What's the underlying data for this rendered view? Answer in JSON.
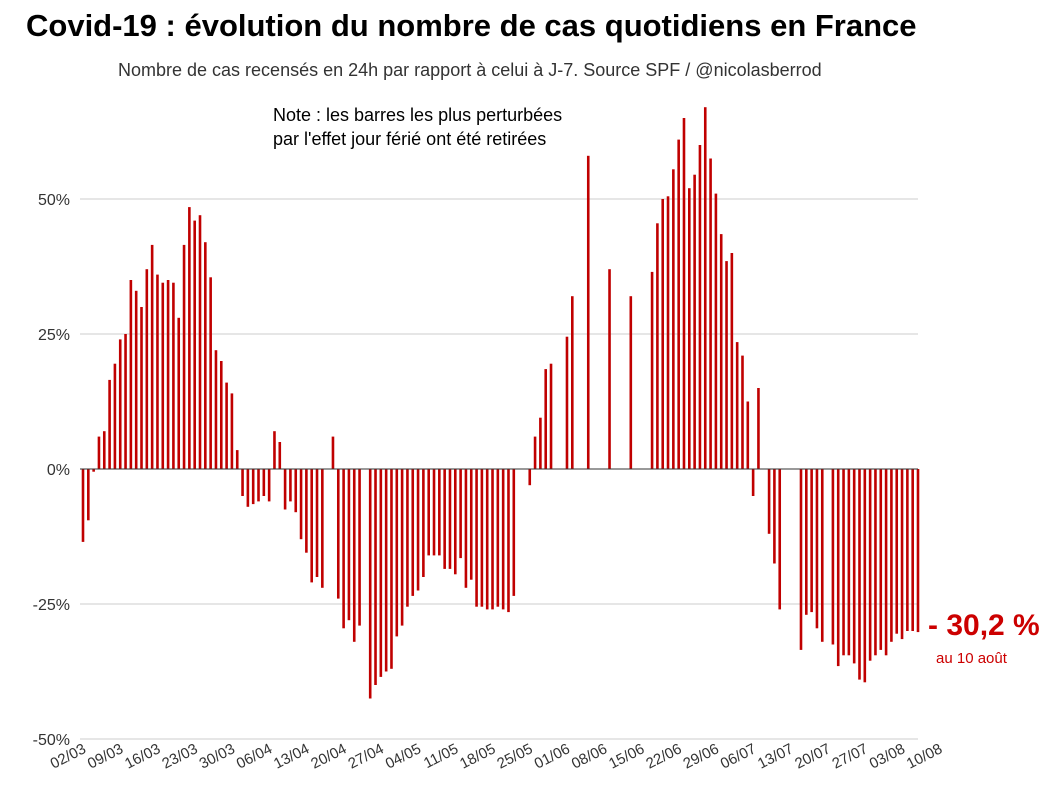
{
  "title": "Covid-19 : évolution du nombre de cas quotidiens en France",
  "subtitle": "Nombre de cas recensés en 24h par rapport à celui à J-7. Source SPF / @nicolasberrod",
  "note": {
    "line1": "Note : les barres les plus perturbées",
    "line2": "par l'effet jour férié ont été retirées"
  },
  "annotation": {
    "value": "- 30,2 %",
    "caption": "au 10 août",
    "color": "#cc0000"
  },
  "chart_data": {
    "type": "bar",
    "bar_color": "#c00000",
    "ylim": [
      -50,
      60
    ],
    "yticks": [
      50,
      25,
      0,
      -25,
      -50
    ],
    "ytick_labels": [
      "50%",
      "25%",
      "0%",
      "-25%",
      "-50%"
    ],
    "grid": true,
    "x_start": "02/03",
    "x_end": "10/08",
    "xtick_labels": [
      "02/03",
      "09/03",
      "16/03",
      "23/03",
      "30/03",
      "06/04",
      "13/04",
      "20/04",
      "27/04",
      "04/05",
      "11/05",
      "18/05",
      "25/05",
      "01/06",
      "08/06",
      "15/06",
      "22/06",
      "29/06",
      "06/07",
      "13/07",
      "20/07",
      "27/07",
      "03/08",
      "10/08"
    ],
    "values": [
      -13.5,
      -9.5,
      -0.5,
      6,
      7,
      16.5,
      19.5,
      24,
      25,
      35,
      33,
      30,
      37,
      41.5,
      36,
      34.5,
      35,
      34.5,
      28,
      41.5,
      48.5,
      46,
      47,
      42,
      35.5,
      22,
      20,
      16,
      14,
      3.5,
      -5,
      -7,
      -6.5,
      -6,
      -5,
      -6,
      7,
      5,
      -7.5,
      -6,
      -8,
      -13,
      -15.5,
      -21,
      -20,
      -22,
      null,
      6,
      -24,
      -29.5,
      -28,
      -32,
      -29,
      null,
      -42.5,
      -40,
      -38.5,
      -37.5,
      -37,
      -31,
      -29,
      -25.5,
      -23.5,
      -22.5,
      -20,
      -16,
      -16,
      -16,
      -18.5,
      -18.5,
      -19.5,
      -16.5,
      -22,
      -20.5,
      -25.5,
      -25.5,
      -26,
      -26,
      -25.5,
      -26,
      -26.5,
      -23.5,
      null,
      null,
      -3,
      6,
      9.5,
      18.5,
      19.5,
      null,
      null,
      24.5,
      32,
      null,
      null,
      58,
      null,
      null,
      null,
      37,
      null,
      null,
      null,
      32,
      null,
      null,
      null,
      36.5,
      45.5,
      50,
      50.5,
      55.5,
      61,
      65,
      52,
      54.5,
      60,
      67,
      57.5,
      51,
      43.5,
      38.5,
      40,
      23.5,
      21,
      12.5,
      -5,
      15,
      null,
      -12,
      -17.5,
      -26,
      null,
      null,
      null,
      -33.5,
      -27,
      -26.5,
      -29.5,
      -32,
      null,
      -32.5,
      -36.5,
      -34.5,
      -34.5,
      -36,
      -39,
      -39.5,
      -35.5,
      -34.5,
      -33.5,
      -34.5,
      -32,
      -30.5,
      -31.5,
      -30,
      -30,
      -30.2
    ]
  }
}
